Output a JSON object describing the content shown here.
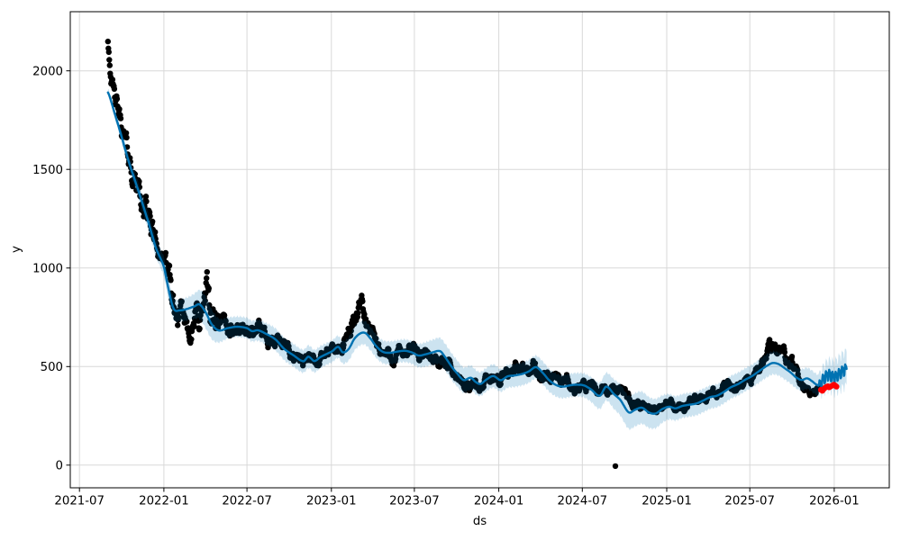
{
  "chart_data": {
    "type": "line",
    "components": [
      "observed-scatter",
      "forecast-line",
      "uncertainty-band",
      "anomaly-scatter",
      "outlier-point"
    ],
    "title": "",
    "xlabel": "ds",
    "ylabel": "y",
    "x_domain": [
      "2021-06-11",
      "2026-05-01"
    ],
    "ylim": [
      -115,
      2300
    ],
    "grid": true,
    "legend": "none",
    "x_ticks": [
      {
        "date": "2021-07-01",
        "label": "2021-07"
      },
      {
        "date": "2022-01-01",
        "label": "2022-01"
      },
      {
        "date": "2022-07-01",
        "label": "2022-07"
      },
      {
        "date": "2023-01-01",
        "label": "2023-01"
      },
      {
        "date": "2023-07-01",
        "label": "2023-07"
      },
      {
        "date": "2024-01-01",
        "label": "2024-01"
      },
      {
        "date": "2024-07-01",
        "label": "2024-07"
      },
      {
        "date": "2025-01-01",
        "label": "2025-01"
      },
      {
        "date": "2025-07-01",
        "label": "2025-07"
      },
      {
        "date": "2026-01-01",
        "label": "2026-01"
      }
    ],
    "y_ticks": [
      {
        "value": 0,
        "label": "0"
      },
      {
        "value": 500,
        "label": "500"
      },
      {
        "value": 1000,
        "label": "1000"
      },
      {
        "value": 1500,
        "label": "1500"
      },
      {
        "value": 2000,
        "label": "2000"
      }
    ],
    "colors": {
      "forecast_line": "#0072B2",
      "uncertainty_band": "#0072B2",
      "band_opacity": 0.2,
      "observed": "#000000",
      "anomaly": "#ff0000",
      "grid": "#d8d8d8",
      "spine": "#000000",
      "text": "#000000"
    },
    "history_range": [
      "2021-09-01",
      "2025-11-28"
    ],
    "future_range": [
      "2025-11-29",
      "2026-01-28"
    ],
    "forecast_yhat": [
      [
        "2021-09-01",
        1890
      ],
      [
        "2021-09-15",
        1790
      ],
      [
        "2021-10-01",
        1665
      ],
      [
        "2021-10-15",
        1550
      ],
      [
        "2021-11-01",
        1430
      ],
      [
        "2021-11-15",
        1330
      ],
      [
        "2021-12-01",
        1210
      ],
      [
        "2021-12-15",
        1100
      ],
      [
        "2022-01-01",
        1005
      ],
      [
        "2022-01-10",
        905
      ],
      [
        "2022-01-22",
        795
      ],
      [
        "2022-02-05",
        785
      ],
      [
        "2022-02-20",
        792
      ],
      [
        "2022-03-08",
        805
      ],
      [
        "2022-03-20",
        815
      ],
      [
        "2022-04-02",
        775
      ],
      [
        "2022-04-16",
        712
      ],
      [
        "2022-05-01",
        683
      ],
      [
        "2022-05-20",
        695
      ],
      [
        "2022-06-10",
        702
      ],
      [
        "2022-07-01",
        695
      ],
      [
        "2022-07-12",
        680
      ],
      [
        "2022-07-25",
        684
      ],
      [
        "2022-08-10",
        668
      ],
      [
        "2022-09-01",
        638
      ],
      [
        "2022-09-20",
        590
      ],
      [
        "2022-10-10",
        558
      ],
      [
        "2022-11-01",
        527
      ],
      [
        "2022-11-12",
        550
      ],
      [
        "2022-11-25",
        528
      ],
      [
        "2022-12-08",
        548
      ],
      [
        "2022-12-20",
        562
      ],
      [
        "2023-01-03",
        578
      ],
      [
        "2023-01-16",
        600
      ],
      [
        "2023-01-26",
        572
      ],
      [
        "2023-02-08",
        590
      ],
      [
        "2023-02-20",
        640
      ],
      [
        "2023-03-05",
        668
      ],
      [
        "2023-03-16",
        670
      ],
      [
        "2023-03-27",
        643
      ],
      [
        "2023-04-10",
        600
      ],
      [
        "2023-04-24",
        574
      ],
      [
        "2023-05-10",
        570
      ],
      [
        "2023-05-25",
        576
      ],
      [
        "2023-06-10",
        580
      ],
      [
        "2023-06-25",
        572
      ],
      [
        "2023-07-10",
        556
      ],
      [
        "2023-07-25",
        562
      ],
      [
        "2023-08-10",
        572
      ],
      [
        "2023-08-26",
        578
      ],
      [
        "2023-09-06",
        548
      ],
      [
        "2023-09-20",
        500
      ],
      [
        "2023-10-02",
        466
      ],
      [
        "2023-10-16",
        432
      ],
      [
        "2023-11-01",
        443
      ],
      [
        "2023-11-12",
        421
      ],
      [
        "2023-11-22",
        412
      ],
      [
        "2023-12-05",
        434
      ],
      [
        "2023-12-20",
        452
      ],
      [
        "2024-01-05",
        431
      ],
      [
        "2024-01-20",
        450
      ],
      [
        "2024-02-05",
        455
      ],
      [
        "2024-02-20",
        462
      ],
      [
        "2024-03-06",
        475
      ],
      [
        "2024-03-22",
        497
      ],
      [
        "2024-04-05",
        470
      ],
      [
        "2024-04-20",
        430
      ],
      [
        "2024-05-06",
        405
      ],
      [
        "2024-05-20",
        398
      ],
      [
        "2024-06-05",
        405
      ],
      [
        "2024-06-20",
        408
      ],
      [
        "2024-07-05",
        404
      ],
      [
        "2024-07-20",
        384
      ],
      [
        "2024-08-08",
        352
      ],
      [
        "2024-08-22",
        398
      ],
      [
        "2024-09-08",
        360
      ],
      [
        "2024-09-22",
        330
      ],
      [
        "2024-10-10",
        268
      ],
      [
        "2024-10-24",
        281
      ],
      [
        "2024-11-08",
        291
      ],
      [
        "2024-11-24",
        266
      ],
      [
        "2024-12-08",
        262
      ],
      [
        "2024-12-22",
        284
      ],
      [
        "2025-01-06",
        296
      ],
      [
        "2025-01-20",
        288
      ],
      [
        "2025-02-04",
        300
      ],
      [
        "2025-02-18",
        306
      ],
      [
        "2025-03-06",
        312
      ],
      [
        "2025-03-20",
        326
      ],
      [
        "2025-04-06",
        345
      ],
      [
        "2025-04-20",
        352
      ],
      [
        "2025-05-06",
        372
      ],
      [
        "2025-05-20",
        394
      ],
      [
        "2025-06-06",
        412
      ],
      [
        "2025-06-20",
        432
      ],
      [
        "2025-07-06",
        452
      ],
      [
        "2025-07-22",
        478
      ],
      [
        "2025-08-08",
        505
      ],
      [
        "2025-08-20",
        518
      ],
      [
        "2025-09-02",
        512
      ],
      [
        "2025-09-16",
        490
      ],
      [
        "2025-09-28",
        470
      ],
      [
        "2025-10-10",
        445
      ],
      [
        "2025-10-22",
        432
      ],
      [
        "2025-11-03",
        440
      ],
      [
        "2025-11-13",
        427
      ],
      [
        "2025-11-21",
        412
      ],
      [
        "2025-11-28",
        403
      ]
    ],
    "forecast_tail_base": [
      [
        "2025-11-29",
        404
      ],
      [
        "2025-12-08",
        438
      ],
      [
        "2025-12-20",
        460
      ],
      [
        "2026-01-01",
        447
      ],
      [
        "2026-01-12",
        466
      ],
      [
        "2026-01-28",
        490
      ]
    ],
    "weekly_oscillation": {
      "amp1": 26,
      "period1": 7,
      "amp2": 10,
      "period2": 3.5
    },
    "band_edge_wiggle": {
      "amp": 7,
      "period": 7
    },
    "uncertainty_halfwidth": [
      [
        "2021-09-01",
        18
      ],
      [
        "2021-10-01",
        28
      ],
      [
        "2021-11-01",
        38
      ],
      [
        "2021-12-15",
        45
      ],
      [
        "2022-01-20",
        55
      ],
      [
        "2022-03-01",
        60
      ],
      [
        "2022-04-05",
        80
      ],
      [
        "2022-05-10",
        55
      ],
      [
        "2022-07-01",
        52
      ],
      [
        "2022-09-01",
        56
      ],
      [
        "2022-11-01",
        58
      ],
      [
        "2023-01-01",
        55
      ],
      [
        "2023-03-01",
        60
      ],
      [
        "2023-05-01",
        58
      ],
      [
        "2023-07-01",
        58
      ],
      [
        "2023-09-10",
        68
      ],
      [
        "2023-11-01",
        62
      ],
      [
        "2024-01-01",
        58
      ],
      [
        "2024-03-01",
        58
      ],
      [
        "2024-05-01",
        58
      ],
      [
        "2024-07-01",
        60
      ],
      [
        "2024-08-15",
        68
      ],
      [
        "2024-10-15",
        84
      ],
      [
        "2024-12-01",
        76
      ],
      [
        "2025-01-15",
        62
      ],
      [
        "2025-03-01",
        60
      ],
      [
        "2025-05-01",
        58
      ],
      [
        "2025-07-01",
        58
      ],
      [
        "2025-09-01",
        58
      ],
      [
        "2025-10-15",
        55
      ],
      [
        "2025-11-28",
        55
      ],
      [
        "2025-12-15",
        68
      ],
      [
        "2026-01-28",
        88
      ]
    ],
    "observed_profile": [
      [
        "2021-09-01",
        2160,
        45
      ],
      [
        "2021-09-05",
        2065,
        50
      ],
      [
        "2021-09-10",
        1965,
        55
      ],
      [
        "2021-09-15",
        1870,
        60
      ],
      [
        "2021-09-22",
        1790,
        65
      ],
      [
        "2021-10-01",
        1700,
        70
      ],
      [
        "2021-10-15",
        1560,
        75
      ],
      [
        "2021-11-01",
        1445,
        85
      ],
      [
        "2021-11-15",
        1350,
        95
      ],
      [
        "2021-12-01",
        1235,
        85
      ],
      [
        "2021-12-15",
        1125,
        70
      ],
      [
        "2022-01-01",
        1050,
        55
      ],
      [
        "2022-01-10",
        945,
        85
      ],
      [
        "2022-01-20",
        800,
        90
      ],
      [
        "2022-02-01",
        730,
        80
      ],
      [
        "2022-02-15",
        712,
        70
      ],
      [
        "2022-03-01",
        705,
        65
      ],
      [
        "2022-03-15",
        745,
        100
      ],
      [
        "2022-04-01",
        800,
        135
      ],
      [
        "2022-04-15",
        755,
        125
      ],
      [
        "2022-05-01",
        695,
        60
      ],
      [
        "2022-05-15",
        685,
        55
      ],
      [
        "2022-06-01",
        705,
        55
      ],
      [
        "2022-06-15",
        695,
        52
      ],
      [
        "2022-07-01",
        690,
        52
      ],
      [
        "2022-07-15",
        678,
        48
      ],
      [
        "2022-08-01",
        668,
        46
      ],
      [
        "2022-08-15",
        658,
        45
      ],
      [
        "2022-09-01",
        632,
        45
      ],
      [
        "2022-09-15",
        602,
        42
      ],
      [
        "2022-10-01",
        572,
        42
      ],
      [
        "2022-10-15",
        548,
        40
      ],
      [
        "2022-11-01",
        532,
        38
      ],
      [
        "2022-11-15",
        552,
        36
      ],
      [
        "2022-12-01",
        542,
        36
      ],
      [
        "2022-12-15",
        556,
        36
      ],
      [
        "2023-01-01",
        562,
        40
      ],
      [
        "2023-01-15",
        582,
        45
      ],
      [
        "2023-02-01",
        622,
        60
      ],
      [
        "2023-02-15",
        702,
        75
      ],
      [
        "2023-03-01",
        782,
        55
      ],
      [
        "2023-03-10",
        762,
        65
      ],
      [
        "2023-03-20",
        692,
        60
      ],
      [
        "2023-04-01",
        642,
        50
      ],
      [
        "2023-04-15",
        592,
        45
      ],
      [
        "2023-05-01",
        562,
        42
      ],
      [
        "2023-05-15",
        556,
        40
      ],
      [
        "2023-06-01",
        562,
        40
      ],
      [
        "2023-06-15",
        566,
        40
      ],
      [
        "2023-07-01",
        576,
        40
      ],
      [
        "2023-07-15",
        562,
        40
      ],
      [
        "2023-08-01",
        552,
        40
      ],
      [
        "2023-08-15",
        546,
        40
      ],
      [
        "2023-09-01",
        522,
        40
      ],
      [
        "2023-09-20",
        482,
        38
      ],
      [
        "2023-10-05",
        442,
        35
      ],
      [
        "2023-10-20",
        422,
        35
      ],
      [
        "2023-11-05",
        422,
        35
      ],
      [
        "2023-11-20",
        406,
        35
      ],
      [
        "2023-12-05",
        422,
        35
      ],
      [
        "2023-12-20",
        442,
        35
      ],
      [
        "2024-01-05",
        442,
        40
      ],
      [
        "2024-01-20",
        462,
        40
      ],
      [
        "2024-02-05",
        482,
        45
      ],
      [
        "2024-02-20",
        492,
        45
      ],
      [
        "2024-03-05",
        502,
        45
      ],
      [
        "2024-03-20",
        496,
        45
      ],
      [
        "2024-04-05",
        466,
        40
      ],
      [
        "2024-04-20",
        442,
        36
      ],
      [
        "2024-05-05",
        422,
        35
      ],
      [
        "2024-05-20",
        412,
        35
      ],
      [
        "2024-06-05",
        406,
        35
      ],
      [
        "2024-06-20",
        400,
        35
      ],
      [
        "2024-07-05",
        400,
        35
      ],
      [
        "2024-07-20",
        390,
        35
      ],
      [
        "2024-08-05",
        366,
        35
      ],
      [
        "2024-08-20",
        372,
        35
      ],
      [
        "2024-09-05",
        376,
        35
      ],
      [
        "2024-09-20",
        362,
        34
      ],
      [
        "2024-10-05",
        342,
        34
      ],
      [
        "2024-10-20",
        322,
        32
      ],
      [
        "2024-11-05",
        312,
        30
      ],
      [
        "2024-11-20",
        302,
        30
      ],
      [
        "2024-12-05",
        292,
        30
      ],
      [
        "2024-12-20",
        302,
        30
      ],
      [
        "2025-01-05",
        302,
        30
      ],
      [
        "2025-01-20",
        306,
        30
      ],
      [
        "2025-02-05",
        302,
        30
      ],
      [
        "2025-02-20",
        312,
        30
      ],
      [
        "2025-03-05",
        316,
        30
      ],
      [
        "2025-03-20",
        332,
        30
      ],
      [
        "2025-04-05",
        346,
        30
      ],
      [
        "2025-04-20",
        356,
        32
      ],
      [
        "2025-05-05",
        372,
        34
      ],
      [
        "2025-05-20",
        392,
        35
      ],
      [
        "2025-06-05",
        412,
        35
      ],
      [
        "2025-06-20",
        432,
        36
      ],
      [
        "2025-07-05",
        456,
        38
      ],
      [
        "2025-07-20",
        482,
        40
      ],
      [
        "2025-08-05",
        542,
        48
      ],
      [
        "2025-08-20",
        576,
        45
      ],
      [
        "2025-09-05",
        582,
        45
      ],
      [
        "2025-09-20",
        542,
        45
      ],
      [
        "2025-10-05",
        482,
        40
      ],
      [
        "2025-10-20",
        432,
        35
      ],
      [
        "2025-11-05",
        402,
        30
      ],
      [
        "2025-11-18",
        400,
        28
      ],
      [
        "2025-11-28",
        406,
        25
      ]
    ],
    "observed_step_days": 1,
    "noise": {
      "seed": 42,
      "ar": 0.88,
      "gain": 0.5,
      "clamp": 1.55
    },
    "outlier_point": {
      "date": "2024-09-11",
      "y": -5
    },
    "anomaly_points": [
      [
        "2025-12-03",
        382
      ],
      [
        "2025-12-06",
        377
      ],
      [
        "2025-12-09",
        386
      ],
      [
        "2025-12-12",
        392
      ],
      [
        "2025-12-15",
        397
      ],
      [
        "2025-12-18",
        400
      ],
      [
        "2025-12-21",
        395
      ],
      [
        "2025-12-24",
        399
      ],
      [
        "2025-12-28",
        404
      ],
      [
        "2025-12-31",
        408
      ],
      [
        "2026-01-03",
        404
      ],
      [
        "2026-01-06",
        398
      ]
    ]
  }
}
